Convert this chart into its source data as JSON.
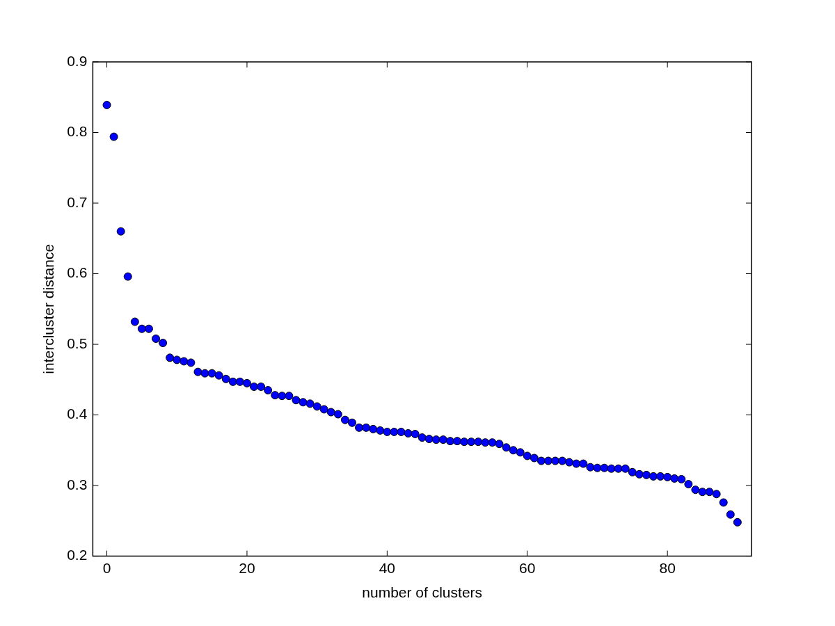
{
  "chart_data": {
    "type": "scatter",
    "xlabel": "number of clusters",
    "ylabel": "intercluster distance",
    "x": [
      0,
      1,
      2,
      3,
      4,
      5,
      6,
      7,
      8,
      9,
      10,
      11,
      12,
      13,
      14,
      15,
      16,
      17,
      18,
      19,
      20,
      21,
      22,
      23,
      24,
      25,
      26,
      27,
      28,
      29,
      30,
      31,
      32,
      33,
      34,
      35,
      36,
      37,
      38,
      39,
      40,
      41,
      42,
      43,
      44,
      45,
      46,
      47,
      48,
      49,
      50,
      51,
      52,
      53,
      54,
      55,
      56,
      57,
      58,
      59,
      60,
      61,
      62,
      63,
      64,
      65,
      66,
      67,
      68,
      69,
      70,
      71,
      72,
      73,
      74,
      75,
      76,
      77,
      78,
      79,
      80,
      81,
      82,
      83,
      84,
      85,
      86,
      87,
      88,
      89,
      90
    ],
    "series": [
      {
        "color": "#0000ff",
        "values": [
          0.839,
          0.794,
          0.66,
          0.596,
          0.532,
          0.522,
          0.522,
          0.508,
          0.502,
          0.481,
          0.478,
          0.476,
          0.474,
          0.461,
          0.459,
          0.459,
          0.456,
          0.451,
          0.447,
          0.447,
          0.445,
          0.44,
          0.44,
          0.435,
          0.428,
          0.427,
          0.427,
          0.421,
          0.418,
          0.416,
          0.412,
          0.408,
          0.404,
          0.401,
          0.393,
          0.389,
          0.382,
          0.382,
          0.38,
          0.378,
          0.376,
          0.376,
          0.376,
          0.374,
          0.373,
          0.368,
          0.366,
          0.365,
          0.365,
          0.363,
          0.363,
          0.362,
          0.362,
          0.362,
          0.361,
          0.361,
          0.359,
          0.354,
          0.35,
          0.347,
          0.342,
          0.339,
          0.335,
          0.335,
          0.335,
          0.335,
          0.333,
          0.331,
          0.331,
          0.326,
          0.325,
          0.325,
          0.324,
          0.324,
          0.324,
          0.319,
          0.316,
          0.315,
          0.313,
          0.313,
          0.312,
          0.31,
          0.309,
          0.302,
          0.294,
          0.291,
          0.291,
          0.288,
          0.276,
          0.259,
          0.248
        ]
      }
    ],
    "xlim": [
      -2,
      92
    ],
    "xticks": [
      0,
      20,
      40,
      60,
      80
    ],
    "ylim": [
      0.2,
      0.9
    ],
    "yticks": [
      0.2,
      0.3,
      0.4,
      0.5,
      0.6,
      0.7,
      0.8,
      0.9
    ],
    "marker": "circle",
    "grid": false,
    "legend": false
  }
}
